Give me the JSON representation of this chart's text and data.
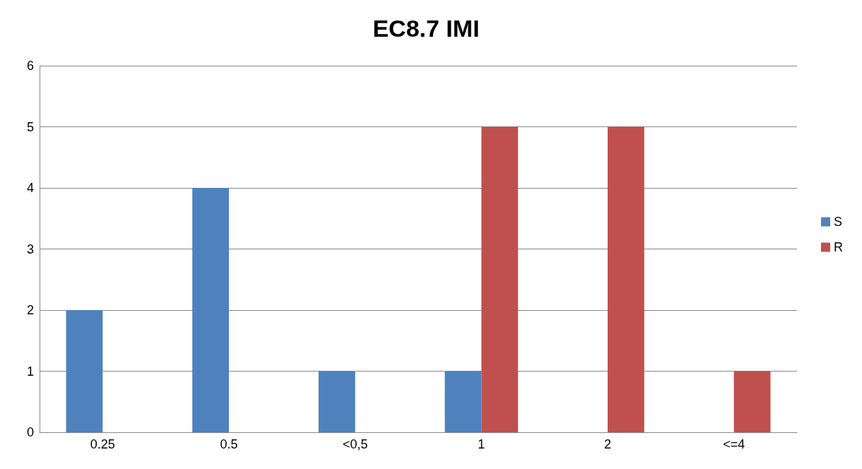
{
  "chart_data": {
    "type": "bar",
    "title": "EC8.7 IMI",
    "categories": [
      "0.25",
      "0.5",
      "<0,5",
      "1",
      "2",
      "<=4"
    ],
    "series": [
      {
        "name": "S",
        "color": "#4f81bd",
        "values": [
          2,
          4,
          1,
          1,
          0,
          0
        ]
      },
      {
        "name": "R",
        "color": "#c0504d",
        "values": [
          0,
          0,
          0,
          5,
          5,
          1
        ]
      }
    ],
    "ylim": [
      0,
      6
    ],
    "yticks": [
      0,
      1,
      2,
      3,
      4,
      5,
      6
    ],
    "grid": "y",
    "legend": "right"
  }
}
